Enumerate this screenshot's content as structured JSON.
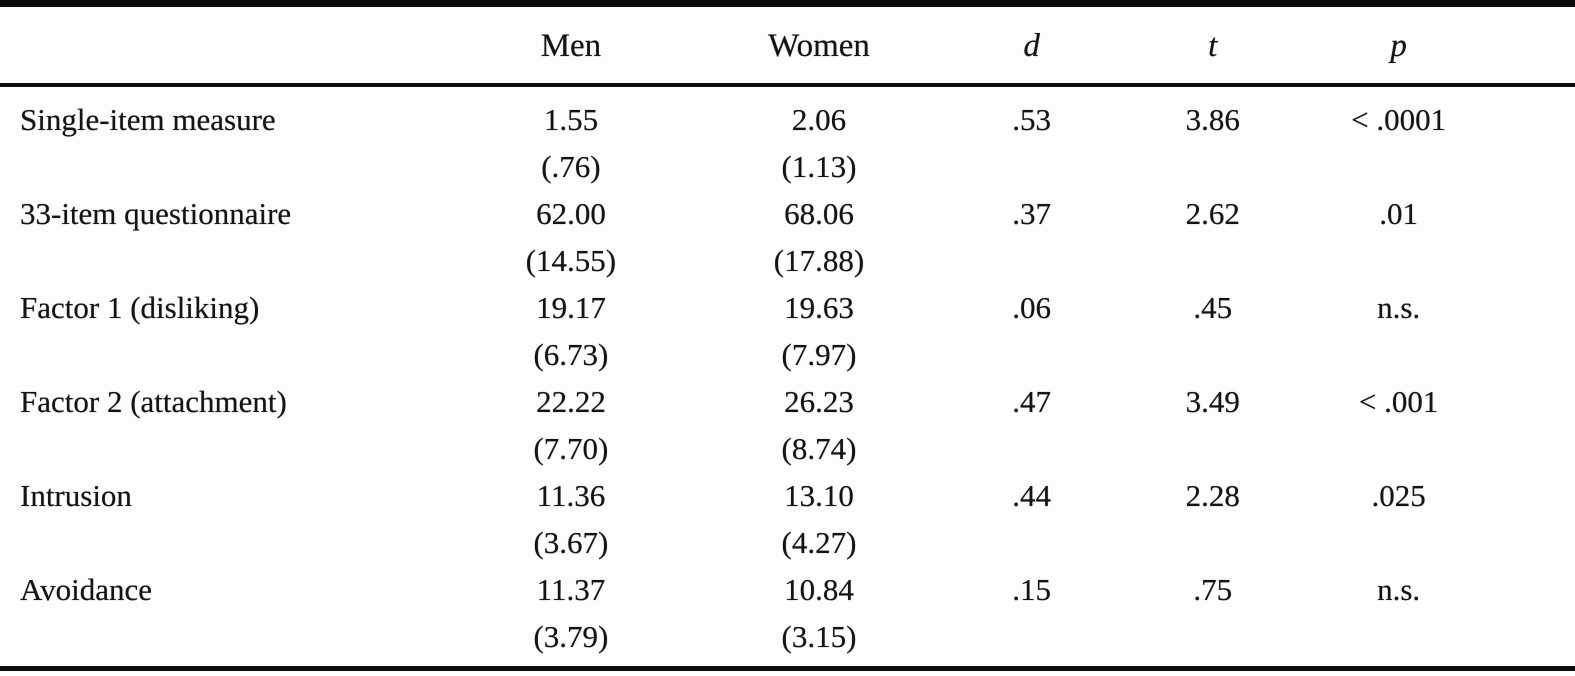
{
  "table": {
    "headers": [
      "",
      "Men",
      "Women",
      "d",
      "t",
      "p"
    ],
    "rows": [
      {
        "label": "Single-item measure",
        "men_mean": "1.55",
        "men_sd": "(.76)",
        "women_mean": "2.06",
        "women_sd": "(1.13)",
        "d": ".53",
        "t": "3.86",
        "p": "< .0001"
      },
      {
        "label": "33-item questionnaire",
        "men_mean": "62.00",
        "men_sd": "(14.55)",
        "women_mean": "68.06",
        "women_sd": "(17.88)",
        "d": ".37",
        "t": "2.62",
        "p": ".01"
      },
      {
        "label": "Factor 1 (disliking)",
        "men_mean": "19.17",
        "men_sd": "(6.73)",
        "women_mean": "19.63",
        "women_sd": "(7.97)",
        "d": ".06",
        "t": ".45",
        "p": "n.s."
      },
      {
        "label": "Factor 2 (attachment)",
        "men_mean": "22.22",
        "men_sd": "(7.70)",
        "women_mean": "26.23",
        "women_sd": "(8.74)",
        "d": ".47",
        "t": "3.49",
        "p": "< .001"
      },
      {
        "label": "Intrusion",
        "men_mean": "11.36",
        "men_sd": "(3.67)",
        "women_mean": "13.10",
        "women_sd": "(4.27)",
        "d": ".44",
        "t": "2.28",
        "p": ".025"
      },
      {
        "label": "Avoidance",
        "men_mean": "11.37",
        "men_sd": "(3.79)",
        "women_mean": "10.84",
        "women_sd": "(3.15)",
        "d": ".15",
        "t": ".75",
        "p": "n.s."
      }
    ]
  }
}
